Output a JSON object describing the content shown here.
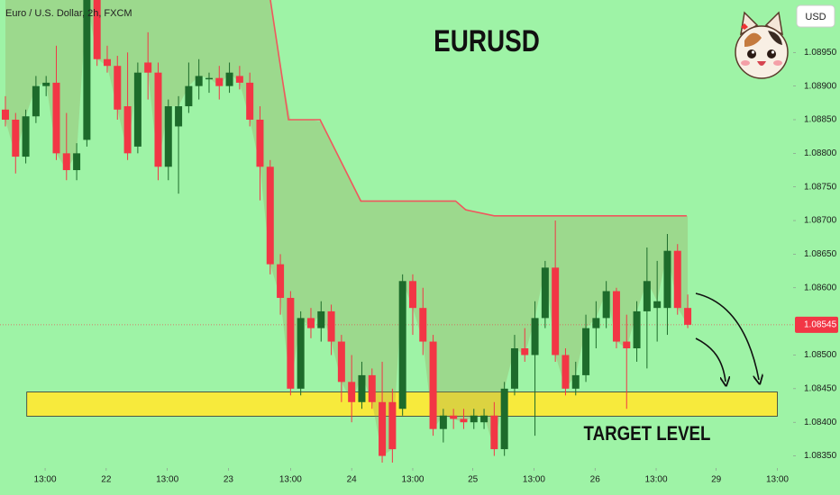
{
  "chart_data": {
    "type": "candlestick",
    "header": "Euro / U.S. Dollar, 2h, FXCM",
    "title": "EURUSD",
    "currency": "USD",
    "up_color": "#1d6b2b",
    "down_color": "#f23645",
    "candles": [
      [
        1.08865,
        1.08885,
        1.0884,
        1.0885
      ],
      [
        1.0885,
        1.0886,
        1.0877,
        1.08795
      ],
      [
        1.08795,
        1.08865,
        1.08785,
        1.08855
      ],
      [
        1.08855,
        1.08915,
        1.08845,
        1.089
      ],
      [
        1.089,
        1.08915,
        1.08885,
        1.08905
      ],
      [
        1.08905,
        1.0896,
        1.0879,
        1.088
      ],
      [
        1.088,
        1.0886,
        1.0876,
        1.08775
      ],
      [
        1.08775,
        1.08815,
        1.0876,
        1.088
      ],
      [
        1.0882,
        1.0904,
        1.0881,
        1.0903
      ],
      [
        1.0903,
        1.0905,
        1.0893,
        1.0894
      ],
      [
        1.0894,
        1.0896,
        1.0892,
        1.0893
      ],
      [
        1.0893,
        1.08945,
        1.0885,
        1.08865
      ],
      [
        1.0887,
        1.0895,
        1.0879,
        1.088
      ],
      [
        1.0881,
        1.08935,
        1.088,
        1.0892
      ],
      [
        1.08935,
        1.0898,
        1.0888,
        1.0892
      ],
      [
        1.0892,
        1.08935,
        1.0876,
        1.0878
      ],
      [
        1.0878,
        1.0888,
        1.0876,
        1.0887
      ],
      [
        1.0884,
        1.08885,
        1.0874,
        1.0887
      ],
      [
        1.0887,
        1.08935,
        1.0886,
        1.089
      ],
      [
        1.089,
        1.0894,
        1.0888,
        1.08915
      ],
      [
        1.0891,
        1.0892,
        1.0889,
        1.08912
      ],
      [
        1.08912,
        1.0893,
        1.0888,
        1.089
      ],
      [
        1.089,
        1.08935,
        1.0889,
        1.0892
      ],
      [
        1.08915,
        1.0893,
        1.08895,
        1.08905
      ],
      [
        1.08905,
        1.0892,
        1.0884,
        1.0885
      ],
      [
        1.0885,
        1.0887,
        1.0873,
        1.0878
      ],
      [
        1.0878,
        1.0879,
        1.0862,
        1.08635
      ],
      [
        1.08635,
        1.0865,
        1.0856,
        1.08585
      ],
      [
        1.08585,
        1.08595,
        1.0844,
        1.0845
      ],
      [
        1.0845,
        1.08565,
        1.0844,
        1.08555
      ],
      [
        1.08555,
        1.0857,
        1.08525,
        1.0854
      ],
      [
        1.0854,
        1.0858,
        1.0852,
        1.08565
      ],
      [
        1.08565,
        1.08575,
        1.085,
        1.0852
      ],
      [
        1.0852,
        1.0853,
        1.0843,
        1.0846
      ],
      [
        1.0846,
        1.085,
        1.084,
        1.0843
      ],
      [
        1.0843,
        1.0849,
        1.0842,
        1.0847
      ],
      [
        1.0847,
        1.0848,
        1.0842,
        1.0843
      ],
      [
        1.0843,
        1.0849,
        1.0834,
        1.0835
      ],
      [
        1.0843,
        1.0845,
        1.0834,
        1.0836
      ],
      [
        1.0842,
        1.0862,
        1.0841,
        1.0861
      ],
      [
        1.0861,
        1.0862,
        1.0853,
        1.0857
      ],
      [
        1.0857,
        1.086,
        1.085,
        1.0852
      ],
      [
        1.0852,
        1.0853,
        1.0838,
        1.0839
      ],
      [
        1.0839,
        1.0842,
        1.0837,
        1.0841
      ],
      [
        1.0841,
        1.0842,
        1.0839,
        1.08405
      ],
      [
        1.08405,
        1.0842,
        1.0839,
        1.084
      ],
      [
        1.084,
        1.0842,
        1.0839,
        1.0841
      ],
      [
        1.084,
        1.0842,
        1.0839,
        1.0841
      ],
      [
        1.0841,
        1.0843,
        1.0835,
        1.0836
      ],
      [
        1.0836,
        1.0846,
        1.0835,
        1.0845
      ],
      [
        1.0845,
        1.0853,
        1.0844,
        1.0851
      ],
      [
        1.0851,
        1.0854,
        1.0849,
        1.085
      ],
      [
        1.085,
        1.0858,
        1.0838,
        1.08555
      ],
      [
        1.08555,
        1.0864,
        1.0854,
        1.0863
      ],
      [
        1.0863,
        1.087,
        1.0849,
        1.085
      ],
      [
        1.085,
        1.0851,
        1.0844,
        1.0845
      ],
      [
        1.0845,
        1.0849,
        1.0844,
        1.0847
      ],
      [
        1.0847,
        1.0856,
        1.0846,
        1.0854
      ],
      [
        1.0854,
        1.0858,
        1.0851,
        1.08555
      ],
      [
        1.08555,
        1.0861,
        1.0854,
        1.08595
      ],
      [
        1.08595,
        1.086,
        1.0851,
        1.0852
      ],
      [
        1.0852,
        1.0856,
        1.0842,
        1.0851
      ],
      [
        1.0851,
        1.0858,
        1.0849,
        1.08565
      ],
      [
        1.08565,
        1.0866,
        1.0848,
        1.0861
      ],
      [
        1.0857,
        1.0864,
        1.0852,
        1.0858
      ],
      [
        1.0857,
        1.0868,
        1.0853,
        1.08655
      ],
      [
        1.08655,
        1.08665,
        1.0856,
        1.0857
      ],
      [
        1.0857,
        1.0859,
        1.0854,
        1.08545
      ]
    ],
    "resistance": {
      "color": "#f0575d",
      "x": [
        25.8,
        27.8,
        30.9,
        34.9,
        44.2,
        45.2,
        48.0,
        66.9
      ],
      "values": [
        1.0905,
        1.0885,
        1.0885,
        1.08729,
        1.08729,
        1.08716,
        1.08707,
        1.08707
      ]
    },
    "target_zone": {
      "label": "TARGET LEVEL",
      "color": "#f7ea3c",
      "low": 1.08409,
      "high": 1.08445,
      "x": [
        2.1,
        75.8
      ]
    },
    "last_price": 1.08545,
    "ylim": [
      1.08332,
      1.09028
    ],
    "yticks": [
      {
        "value": 1.0895,
        "label": "1.08950"
      },
      {
        "value": 1.089,
        "label": "1.08900"
      },
      {
        "value": 1.0885,
        "label": "1.08850"
      },
      {
        "value": 1.088,
        "label": "1.08800"
      },
      {
        "value": 1.0875,
        "label": "1.08750"
      },
      {
        "value": 1.087,
        "label": "1.08700"
      },
      {
        "value": 1.0865,
        "label": "1.08650"
      },
      {
        "value": 1.086,
        "label": "1.08600"
      },
      {
        "value": 1.085,
        "label": "1.08500"
      },
      {
        "value": 1.0845,
        "label": "1.08450"
      },
      {
        "value": 1.084,
        "label": "1.08400"
      },
      {
        "value": 1.0835,
        "label": "1.08350"
      }
    ],
    "xlim": [
      -0.53,
      77.35
    ],
    "xticks": [
      {
        "value": 3.9,
        "label": "13:00"
      },
      {
        "value": 9.9,
        "label": "22"
      },
      {
        "value": 15.9,
        "label": "13:00"
      },
      {
        "value": 21.9,
        "label": "23"
      },
      {
        "value": 28.0,
        "label": "13:00"
      },
      {
        "value": 34.0,
        "label": "24"
      },
      {
        "value": 40.0,
        "label": "13:00"
      },
      {
        "value": 45.9,
        "label": "25"
      },
      {
        "value": 51.9,
        "label": "13:00"
      },
      {
        "value": 57.9,
        "label": "26"
      },
      {
        "value": 63.9,
        "label": "13:00"
      },
      {
        "value": 69.8,
        "label": "29"
      },
      {
        "value": 75.8,
        "label": "13:00"
      }
    ]
  }
}
